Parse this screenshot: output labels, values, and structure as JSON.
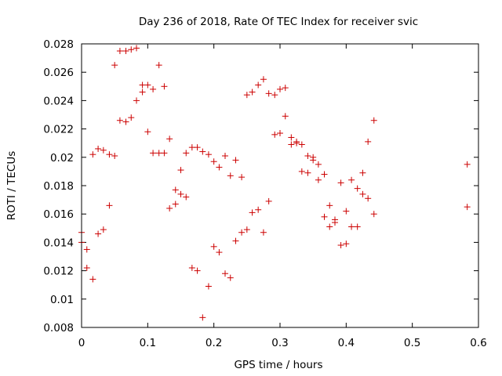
{
  "chart_data": {
    "type": "scatter",
    "title": "Day 236 of 2018, Rate Of TEC Index for receiver svic",
    "xlabel": "GPS time / hours",
    "ylabel": "ROTI / TECUs",
    "xlim": [
      0,
      0.6
    ],
    "ylim": [
      0.008,
      0.028
    ],
    "grid": false,
    "legend": "none",
    "marker": "+",
    "color": "#cc0000",
    "x_ticks": [
      0,
      0.1,
      0.2,
      0.3,
      0.4,
      0.5,
      0.6
    ],
    "x_tick_labels": [
      "0",
      "0.1",
      "0.2",
      "0.3",
      "0.4",
      "0.5",
      "0.6"
    ],
    "y_ticks": [
      0.008,
      0.01,
      0.012,
      0.014,
      0.016,
      0.018,
      0.02,
      0.022,
      0.024,
      0.026,
      0.028
    ],
    "y_tick_labels": [
      "0.008",
      "0.01",
      "0.012",
      "0.014",
      "0.016",
      "0.018",
      "0.02",
      "0.022",
      "0.024",
      "0.026",
      "0.028"
    ],
    "series": [
      {
        "name": "ROTI",
        "points": [
          [
            0.0,
            0.0147
          ],
          [
            0.0,
            0.014
          ],
          [
            0.008,
            0.0135
          ],
          [
            0.008,
            0.0122
          ],
          [
            0.017,
            0.0114
          ],
          [
            0.017,
            0.0202
          ],
          [
            0.025,
            0.0146
          ],
          [
            0.025,
            0.0206
          ],
          [
            0.033,
            0.0149
          ],
          [
            0.033,
            0.0205
          ],
          [
            0.042,
            0.0166
          ],
          [
            0.042,
            0.0202
          ],
          [
            0.05,
            0.0201
          ],
          [
            0.05,
            0.0265
          ],
          [
            0.058,
            0.0275
          ],
          [
            0.058,
            0.0226
          ],
          [
            0.067,
            0.0275
          ],
          [
            0.067,
            0.0225
          ],
          [
            0.075,
            0.0276
          ],
          [
            0.075,
            0.0228
          ],
          [
            0.083,
            0.0277
          ],
          [
            0.083,
            0.024
          ],
          [
            0.092,
            0.0251
          ],
          [
            0.092,
            0.0246
          ],
          [
            0.1,
            0.0251
          ],
          [
            0.1,
            0.0218
          ],
          [
            0.108,
            0.0248
          ],
          [
            0.108,
            0.0203
          ],
          [
            0.117,
            0.0265
          ],
          [
            0.117,
            0.0203
          ],
          [
            0.125,
            0.025
          ],
          [
            0.125,
            0.0203
          ],
          [
            0.133,
            0.0213
          ],
          [
            0.133,
            0.0164
          ],
          [
            0.142,
            0.0177
          ],
          [
            0.142,
            0.0167
          ],
          [
            0.15,
            0.0191
          ],
          [
            0.15,
            0.0174
          ],
          [
            0.158,
            0.0203
          ],
          [
            0.158,
            0.0172
          ],
          [
            0.167,
            0.0207
          ],
          [
            0.167,
            0.0122
          ],
          [
            0.175,
            0.0207
          ],
          [
            0.175,
            0.012
          ],
          [
            0.183,
            0.0204
          ],
          [
            0.183,
            0.0087
          ],
          [
            0.192,
            0.0202
          ],
          [
            0.192,
            0.0109
          ],
          [
            0.2,
            0.0197
          ],
          [
            0.2,
            0.0137
          ],
          [
            0.208,
            0.0193
          ],
          [
            0.208,
            0.0133
          ],
          [
            0.217,
            0.0201
          ],
          [
            0.217,
            0.0118
          ],
          [
            0.225,
            0.0187
          ],
          [
            0.225,
            0.0115
          ],
          [
            0.233,
            0.0198
          ],
          [
            0.233,
            0.0141
          ],
          [
            0.242,
            0.0186
          ],
          [
            0.242,
            0.0147
          ],
          [
            0.25,
            0.0244
          ],
          [
            0.25,
            0.0149
          ],
          [
            0.258,
            0.0246
          ],
          [
            0.258,
            0.0161
          ],
          [
            0.267,
            0.0251
          ],
          [
            0.267,
            0.0163
          ],
          [
            0.275,
            0.0255
          ],
          [
            0.275,
            0.0147
          ],
          [
            0.283,
            0.0245
          ],
          [
            0.283,
            0.0169
          ],
          [
            0.292,
            0.0244
          ],
          [
            0.292,
            0.0216
          ],
          [
            0.3,
            0.0248
          ],
          [
            0.3,
            0.0217
          ],
          [
            0.308,
            0.0249
          ],
          [
            0.308,
            0.0229
          ],
          [
            0.317,
            0.0214
          ],
          [
            0.317,
            0.0209
          ],
          [
            0.325,
            0.0211
          ],
          [
            0.325,
            0.021
          ],
          [
            0.333,
            0.0209
          ],
          [
            0.333,
            0.019
          ],
          [
            0.342,
            0.0201
          ],
          [
            0.342,
            0.0189
          ],
          [
            0.35,
            0.02
          ],
          [
            0.35,
            0.0198
          ],
          [
            0.358,
            0.0195
          ],
          [
            0.358,
            0.0184
          ],
          [
            0.367,
            0.0188
          ],
          [
            0.367,
            0.0158
          ],
          [
            0.375,
            0.0166
          ],
          [
            0.375,
            0.0151
          ],
          [
            0.383,
            0.0156
          ],
          [
            0.383,
            0.0154
          ],
          [
            0.392,
            0.0182
          ],
          [
            0.392,
            0.0138
          ],
          [
            0.4,
            0.0162
          ],
          [
            0.4,
            0.0139
          ],
          [
            0.408,
            0.0184
          ],
          [
            0.408,
            0.0151
          ],
          [
            0.417,
            0.0178
          ],
          [
            0.417,
            0.0151
          ],
          [
            0.425,
            0.0174
          ],
          [
            0.425,
            0.0189
          ],
          [
            0.433,
            0.0211
          ],
          [
            0.433,
            0.0171
          ],
          [
            0.442,
            0.0226
          ],
          [
            0.442,
            0.016
          ],
          [
            0.583,
            0.0195
          ],
          [
            0.583,
            0.0165
          ]
        ]
      }
    ]
  }
}
